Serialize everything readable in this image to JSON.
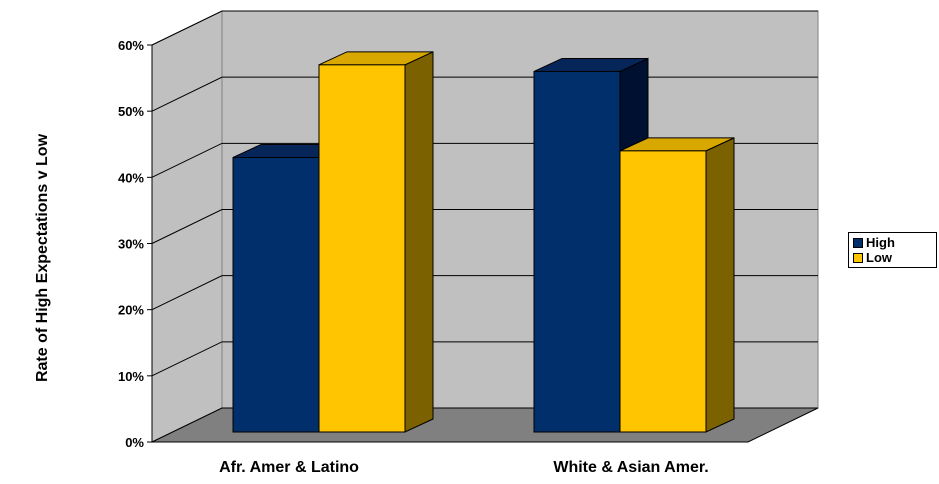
{
  "chart_data": {
    "type": "bar",
    "categories": [
      "Afr. Amer & Latino",
      "White & Asian Amer."
    ],
    "series": [
      {
        "name": "High",
        "values": [
          43,
          56
        ],
        "color": "#002F6C",
        "side_color": "#001030",
        "top_color": "#06265a"
      },
      {
        "name": "Low",
        "values": [
          57,
          44
        ],
        "color": "#FFC500",
        "side_color": "#7C6100",
        "top_color": "#D9A800"
      }
    ],
    "title": "",
    "xlabel": "",
    "ylabel": "Rate of High Expectations v Low",
    "ylim": [
      0,
      60
    ],
    "y_ticks": [
      "0%",
      "10%",
      "20%",
      "30%",
      "40%",
      "50%",
      "60%"
    ],
    "y_tick_values": [
      0,
      10,
      20,
      30,
      40,
      50,
      60
    ],
    "grid": true,
    "style": "3d-clustered-column",
    "legend_position": "right",
    "wall_color": "#C0C0C0",
    "floor_color": "#808080"
  }
}
